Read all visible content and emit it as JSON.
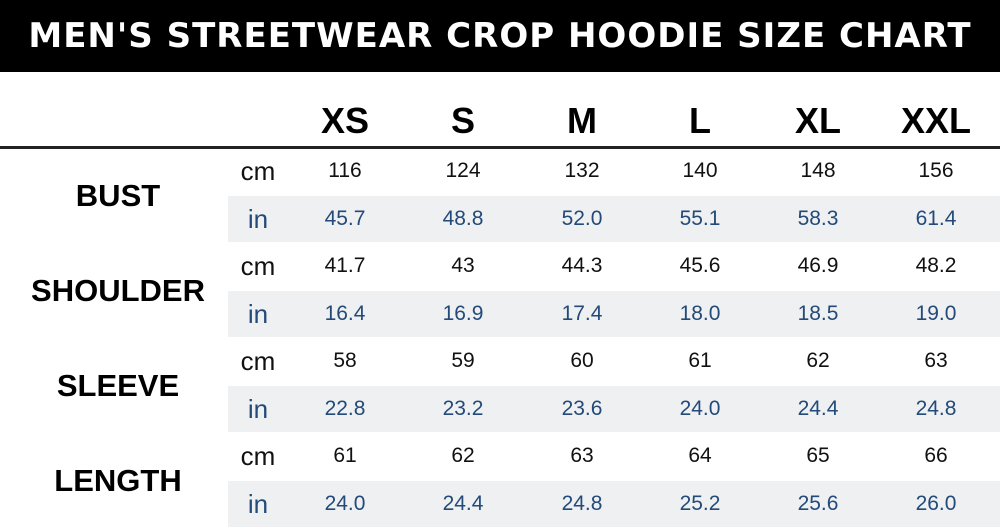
{
  "title": "MEN'S STREETWEAR CROP HOODIE SIZE CHART",
  "table": {
    "columns": [
      "XS",
      "S",
      "M",
      "L",
      "XL",
      "XXL"
    ],
    "rows": [
      {
        "label": "BUST",
        "units": [
          {
            "unit": "cm",
            "values": [
              "116",
              "124",
              "132",
              "140",
              "148",
              "156"
            ]
          },
          {
            "unit": "in",
            "values": [
              "45.7",
              "48.8",
              "52.0",
              "55.1",
              "58.3",
              "61.4"
            ]
          }
        ]
      },
      {
        "label": "SHOULDER",
        "units": [
          {
            "unit": "cm",
            "values": [
              "41.7",
              "43",
              "44.3",
              "45.6",
              "46.9",
              "48.2"
            ]
          },
          {
            "unit": "in",
            "values": [
              "16.4",
              "16.9",
              "17.4",
              "18.0",
              "18.5",
              "19.0"
            ]
          }
        ]
      },
      {
        "label": "SLEEVE",
        "units": [
          {
            "unit": "cm",
            "values": [
              "58",
              "59",
              "60",
              "61",
              "62",
              "63"
            ]
          },
          {
            "unit": "in",
            "values": [
              "22.8",
              "23.2",
              "23.6",
              "24.0",
              "24.4",
              "24.8"
            ]
          }
        ]
      },
      {
        "label": "LENGTH",
        "units": [
          {
            "unit": "cm",
            "values": [
              "61",
              "62",
              "63",
              "64",
              "65",
              "66"
            ]
          },
          {
            "unit": "in",
            "values": [
              "24.0",
              "24.4",
              "24.8",
              "25.2",
              "25.6",
              "26.0"
            ]
          }
        ]
      }
    ]
  }
}
